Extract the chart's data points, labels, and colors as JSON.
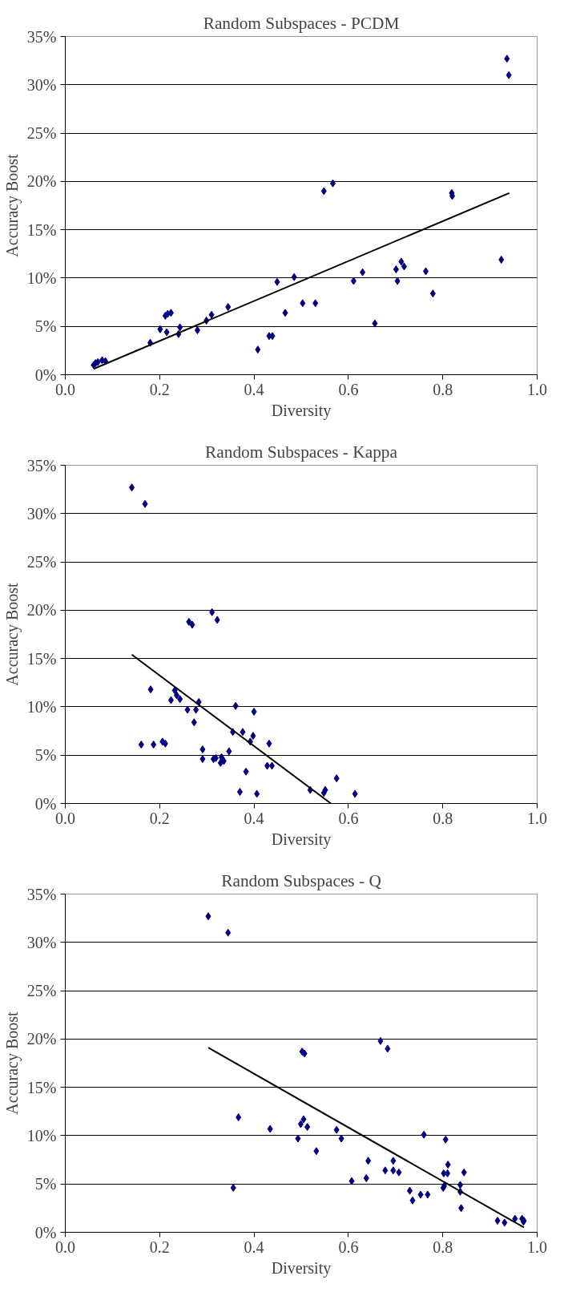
{
  "chart_data": [
    {
      "type": "scatter",
      "title": "Random Subspaces - PCDM",
      "xlabel": "Diversity",
      "ylabel": "Accuracy Boost",
      "xlim": [
        0,
        1
      ],
      "xticks": [
        {
          "value": 0,
          "label": "0.0"
        },
        {
          "value": 0.2,
          "label": "0.2"
        },
        {
          "value": 0.4,
          "label": "0.4"
        },
        {
          "value": 0.6,
          "label": "0.6"
        },
        {
          "value": 0.8,
          "label": "0.8"
        },
        {
          "value": 1,
          "label": "1.0"
        }
      ],
      "ylim": [
        0,
        35
      ],
      "yticks": [
        {
          "value": 0,
          "label": "0%"
        },
        {
          "value": 5,
          "label": "5%"
        },
        {
          "value": 10,
          "label": "10%"
        },
        {
          "value": 15,
          "label": "15%"
        },
        {
          "value": 20,
          "label": "20%"
        },
        {
          "value": 25,
          "label": "25%"
        },
        {
          "value": 30,
          "label": "30%"
        },
        {
          "value": 35,
          "label": "35%"
        }
      ],
      "grid": "y",
      "marker": "diamond",
      "series": [
        {
          "color": "#000080",
          "x": [
            0.06,
            0.064,
            0.069,
            0.078,
            0.085,
            0.18,
            0.201,
            0.215,
            0.212,
            0.217,
            0.224,
            0.24,
            0.243,
            0.28,
            0.299,
            0.31,
            0.345,
            0.408,
            0.432,
            0.439,
            0.449,
            0.466,
            0.485,
            0.503,
            0.53,
            0.548,
            0.567,
            0.611,
            0.63,
            0.656,
            0.701,
            0.704,
            0.712,
            0.718,
            0.764,
            0.779,
            0.819,
            0.82,
            0.924,
            0.936,
            0.94
          ],
          "values": [
            1.0,
            1.2,
            1.3,
            1.5,
            1.4,
            3.3,
            4.7,
            4.4,
            6.1,
            6.3,
            6.4,
            4.2,
            4.9,
            4.6,
            5.6,
            6.2,
            7.0,
            2.6,
            4.0,
            4.0,
            9.6,
            6.4,
            10.1,
            7.4,
            7.4,
            19.0,
            19.8,
            9.7,
            10.6,
            5.3,
            10.9,
            9.7,
            11.7,
            11.2,
            10.7,
            8.4,
            18.8,
            18.5,
            11.9,
            32.7,
            31.0
          ]
        },
        {
          "type": "line",
          "color": "#000000",
          "marker": "none",
          "line_style": "solid",
          "x": [
            0.06,
            0.941
          ],
          "values": [
            0.6,
            18.8
          ]
        }
      ]
    },
    {
      "type": "scatter",
      "title": "Random Subspaces - Kappa",
      "xlabel": "Diversity",
      "ylabel": "Accuracy Boost",
      "xlim": [
        0,
        1
      ],
      "xticks": [
        {
          "value": 0,
          "label": "0.0"
        },
        {
          "value": 0.2,
          "label": "0.2"
        },
        {
          "value": 0.4,
          "label": "0.4"
        },
        {
          "value": 0.6,
          "label": "0.6"
        },
        {
          "value": 0.8,
          "label": "0.8"
        },
        {
          "value": 1,
          "label": "1.0"
        }
      ],
      "ylim": [
        0,
        35
      ],
      "yticks": [
        {
          "value": 0,
          "label": "0%"
        },
        {
          "value": 5,
          "label": "5%"
        },
        {
          "value": 10,
          "label": "10%"
        },
        {
          "value": 15,
          "label": "15%"
        },
        {
          "value": 20,
          "label": "20%"
        },
        {
          "value": 25,
          "label": "25%"
        },
        {
          "value": 30,
          "label": "30%"
        },
        {
          "value": 35,
          "label": "35%"
        }
      ],
      "grid": "y",
      "marker": "diamond",
      "series": [
        {
          "color": "#000080",
          "x": [
            0.141,
            0.169,
            0.161,
            0.181,
            0.187,
            0.206,
            0.212,
            0.224,
            0.232,
            0.236,
            0.243,
            0.259,
            0.262,
            0.269,
            0.273,
            0.277,
            0.283,
            0.291,
            0.291,
            0.311,
            0.314,
            0.319,
            0.322,
            0.329,
            0.331,
            0.336,
            0.347,
            0.355,
            0.361,
            0.37,
            0.376,
            0.383,
            0.392,
            0.398,
            0.4,
            0.406,
            0.428,
            0.432,
            0.438,
            0.519,
            0.548,
            0.551,
            0.575,
            0.614
          ],
          "values": [
            32.7,
            31.0,
            6.1,
            11.8,
            6.1,
            6.4,
            6.2,
            10.7,
            11.7,
            11.2,
            10.8,
            9.7,
            18.8,
            18.5,
            8.4,
            9.7,
            10.5,
            5.6,
            4.6,
            19.8,
            4.6,
            4.7,
            19.0,
            4.2,
            4.8,
            4.4,
            5.4,
            7.4,
            10.1,
            1.2,
            7.4,
            3.3,
            6.4,
            7.0,
            9.5,
            1.0,
            3.9,
            6.2,
            3.9,
            1.4,
            1.1,
            1.4,
            2.6,
            1.0
          ]
        },
        {
          "type": "line",
          "color": "#000000",
          "marker": "none",
          "line_style": "solid",
          "x": [
            0.141,
            0.563
          ],
          "values": [
            15.4,
            0
          ]
        }
      ]
    },
    {
      "type": "scatter",
      "title": "Random Subspaces - Q",
      "xlabel": "Diversity",
      "ylabel": "Accuracy Boost",
      "xlim": [
        0,
        1
      ],
      "xticks": [
        {
          "value": 0,
          "label": "0.0"
        },
        {
          "value": 0.2,
          "label": "0.2"
        },
        {
          "value": 0.4,
          "label": "0.4"
        },
        {
          "value": 0.6,
          "label": "0.6"
        },
        {
          "value": 0.8,
          "label": "0.8"
        },
        {
          "value": 1,
          "label": "1.0"
        }
      ],
      "ylim": [
        0,
        35
      ],
      "yticks": [
        {
          "value": 0,
          "label": "0%"
        },
        {
          "value": 5,
          "label": "5%"
        },
        {
          "value": 10,
          "label": "10%"
        },
        {
          "value": 15,
          "label": "15%"
        },
        {
          "value": 20,
          "label": "20%"
        },
        {
          "value": 25,
          "label": "25%"
        },
        {
          "value": 30,
          "label": "30%"
        },
        {
          "value": 35,
          "label": "35%"
        }
      ],
      "grid": "y",
      "marker": "diamond",
      "series": [
        {
          "color": "#000080",
          "x": [
            0.303,
            0.345,
            0.356,
            0.367,
            0.434,
            0.493,
            0.499,
            0.502,
            0.505,
            0.507,
            0.513,
            0.532,
            0.575,
            0.585,
            0.607,
            0.638,
            0.642,
            0.668,
            0.678,
            0.683,
            0.695,
            0.695,
            0.707,
            0.73,
            0.736,
            0.753,
            0.76,
            0.768,
            0.801,
            0.803,
            0.802,
            0.806,
            0.81,
            0.811,
            0.837,
            0.837,
            0.839,
            0.845,
            0.916,
            0.931,
            0.953,
            0.968,
            0.971,
            0.972
          ],
          "values": [
            32.7,
            31.0,
            4.6,
            11.9,
            10.7,
            9.7,
            11.2,
            18.7,
            11.7,
            18.5,
            10.9,
            8.4,
            10.6,
            9.7,
            5.3,
            5.6,
            7.4,
            19.8,
            6.4,
            19.0,
            7.4,
            6.4,
            6.2,
            4.3,
            3.3,
            3.9,
            10.1,
            3.9,
            4.6,
            4.8,
            6.1,
            9.6,
            6.1,
            7.0,
            4.9,
            4.2,
            2.5,
            6.2,
            1.2,
            1.0,
            1.4,
            1.4,
            1.1,
            1.2
          ]
        },
        {
          "type": "line",
          "color": "#000000",
          "marker": "none",
          "line_style": "solid",
          "x": [
            0.303,
            0.972
          ],
          "values": [
            19.1,
            0.5
          ]
        }
      ]
    }
  ]
}
